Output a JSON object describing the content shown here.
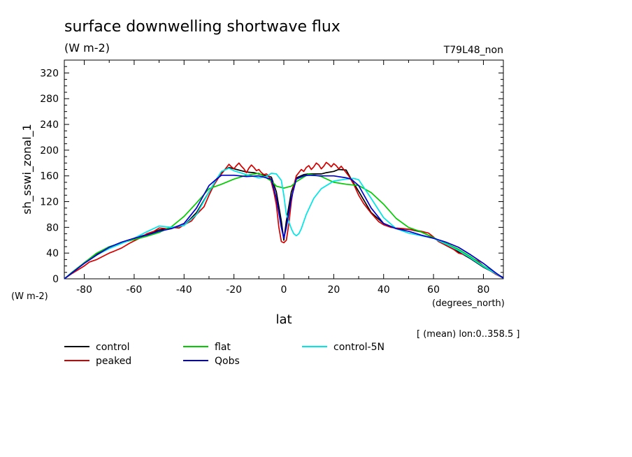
{
  "chart_data": {
    "type": "line",
    "title": "surface downwelling shortwave flux",
    "subtitle": "(W m-2)",
    "run_label": "T79L48_non",
    "ylabel": "sh_sswi_zonal_1",
    "y_units": "(W m-2)",
    "xlabel": "lat",
    "x_units": "(degrees_north)",
    "note": "[ (mean) lon:0..358.5 ]",
    "xlim": [
      -88,
      88
    ],
    "ylim": [
      0,
      340
    ],
    "x_ticks": [
      -80,
      -60,
      -40,
      -20,
      0,
      20,
      40,
      60,
      80
    ],
    "y_ticks": [
      0,
      40,
      80,
      120,
      160,
      200,
      240,
      280,
      320
    ],
    "grid": false,
    "legend_position": "bottom",
    "series": [
      {
        "name": "control",
        "color": "#000000",
        "x": [
          -88,
          -85,
          -80,
          -75,
          -70,
          -65,
          -60,
          -55,
          -50,
          -45,
          -40,
          -35,
          -30,
          -27,
          -25,
          -22,
          -20,
          -17,
          -15,
          -12,
          -10,
          -8,
          -5,
          -3,
          -1,
          0,
          1,
          3,
          5,
          8,
          10,
          12,
          15,
          17,
          20,
          22,
          25,
          27,
          30,
          35,
          40,
          45,
          50,
          55,
          60,
          65,
          70,
          75,
          80,
          85,
          88
        ],
        "y": [
          0,
          9,
          25,
          39,
          49,
          57,
          63,
          69,
          76,
          79,
          83,
          103,
          135,
          155,
          166,
          173,
          171,
          168,
          166,
          165,
          163,
          161,
          158,
          135,
          90,
          60,
          90,
          135,
          157,
          162,
          163,
          163,
          163,
          165,
          167,
          170,
          169,
          155,
          136,
          103,
          86,
          78,
          77,
          73,
          64,
          52,
          42,
          31,
          18,
          8,
          2
        ]
      },
      {
        "name": "peaked",
        "color": "#d40000",
        "x": [
          -88,
          -85,
          -80,
          -78,
          -75,
          -72,
          -70,
          -68,
          -65,
          -62,
          -60,
          -57,
          -55,
          -52,
          -50,
          -47,
          -45,
          -42,
          -40,
          -37,
          -35,
          -32,
          -30,
          -28,
          -26,
          -24,
          -22,
          -21,
          -20,
          -19,
          -18,
          -17,
          -16,
          -15,
          -14,
          -13,
          -12,
          -11,
          -10,
          -9,
          -8,
          -7,
          -6,
          -5,
          -4,
          -3,
          -2,
          -1,
          0,
          1,
          2,
          3,
          4,
          5,
          6,
          7,
          8,
          9,
          10,
          11,
          12,
          13,
          14,
          15,
          16,
          17,
          18,
          19,
          20,
          21,
          22,
          23,
          24,
          26,
          28,
          30,
          32,
          35,
          38,
          40,
          43,
          45,
          48,
          50,
          52,
          55,
          58,
          60,
          62,
          65,
          68,
          70,
          72,
          75,
          78,
          80,
          83,
          85,
          88
        ],
        "y": [
          0,
          8,
          20,
          26,
          30,
          36,
          40,
          43,
          48,
          55,
          59,
          65,
          70,
          74,
          79,
          78,
          80,
          79,
          84,
          90,
          100,
          112,
          130,
          146,
          158,
          168,
          178,
          174,
          171,
          176,
          180,
          175,
          171,
          165,
          172,
          177,
          173,
          168,
          170,
          165,
          162,
          163,
          160,
          150,
          135,
          115,
          80,
          58,
          56,
          60,
          85,
          120,
          145,
          160,
          165,
          170,
          167,
          173,
          176,
          170,
          174,
          180,
          177,
          171,
          175,
          181,
          178,
          174,
          179,
          176,
          171,
          175,
          170,
          160,
          147,
          130,
          117,
          102,
          89,
          84,
          80,
          79,
          78,
          77,
          76,
          74,
          71,
          65,
          58,
          52,
          46,
          40,
          38,
          33,
          27,
          20,
          12,
          7,
          1
        ]
      },
      {
        "name": "flat",
        "color": "#00cc00",
        "x": [
          -88,
          -85,
          -80,
          -75,
          -70,
          -65,
          -60,
          -55,
          -50,
          -45,
          -40,
          -35,
          -30,
          -25,
          -20,
          -15,
          -10,
          -5,
          -3,
          0,
          3,
          5,
          10,
          15,
          20,
          25,
          30,
          35,
          40,
          45,
          50,
          55,
          60,
          65,
          70,
          75,
          80,
          85,
          88
        ],
        "y": [
          0,
          10,
          25,
          40,
          50,
          56,
          61,
          66,
          72,
          81,
          97,
          118,
          140,
          147,
          155,
          161,
          164,
          152,
          144,
          141,
          144,
          151,
          163,
          159,
          150,
          147,
          145,
          134,
          116,
          94,
          80,
          73,
          64,
          55,
          46,
          34,
          20,
          9,
          1
        ]
      },
      {
        "name": "control-5N",
        "color": "#00e5e5",
        "x": [
          -88,
          -85,
          -80,
          -75,
          -70,
          -65,
          -60,
          -55,
          -50,
          -45,
          -40,
          -35,
          -30,
          -27,
          -25,
          -22,
          -20,
          -15,
          -10,
          -7,
          -5,
          -3,
          -1,
          0,
          1,
          3,
          4,
          5,
          6,
          7,
          9,
          12,
          15,
          20,
          25,
          28,
          30,
          35,
          40,
          45,
          50,
          55,
          60,
          65,
          70,
          75,
          80,
          85,
          88
        ],
        "y": [
          0,
          9,
          24,
          37,
          47,
          55,
          63,
          73,
          82,
          80,
          83,
          100,
          135,
          155,
          167,
          172,
          168,
          162,
          157,
          159,
          164,
          163,
          153,
          130,
          100,
          78,
          70,
          67,
          70,
          78,
          100,
          125,
          140,
          152,
          155,
          156,
          154,
          125,
          95,
          78,
          71,
          67,
          63,
          54,
          44,
          32,
          19,
          8,
          1
        ]
      },
      {
        "name": "Qobs",
        "color": "#0000cc",
        "x": [
          -88,
          -85,
          -80,
          -75,
          -70,
          -65,
          -60,
          -55,
          -50,
          -45,
          -40,
          -35,
          -30,
          -27,
          -25,
          -22,
          -20,
          -15,
          -10,
          -5,
          -3,
          -1,
          0,
          1,
          3,
          5,
          8,
          10,
          15,
          20,
          25,
          27,
          30,
          35,
          40,
          45,
          50,
          55,
          60,
          65,
          70,
          75,
          80,
          85,
          88
        ],
        "y": [
          0,
          9,
          24,
          37,
          49,
          57,
          63,
          68,
          74,
          78,
          86,
          110,
          145,
          155,
          161,
          161,
          161,
          159,
          160,
          155,
          125,
          80,
          63,
          80,
          125,
          155,
          160,
          161,
          160,
          160,
          157,
          155,
          145,
          110,
          86,
          78,
          74,
          68,
          63,
          57,
          49,
          37,
          24,
          9,
          1
        ]
      }
    ]
  }
}
